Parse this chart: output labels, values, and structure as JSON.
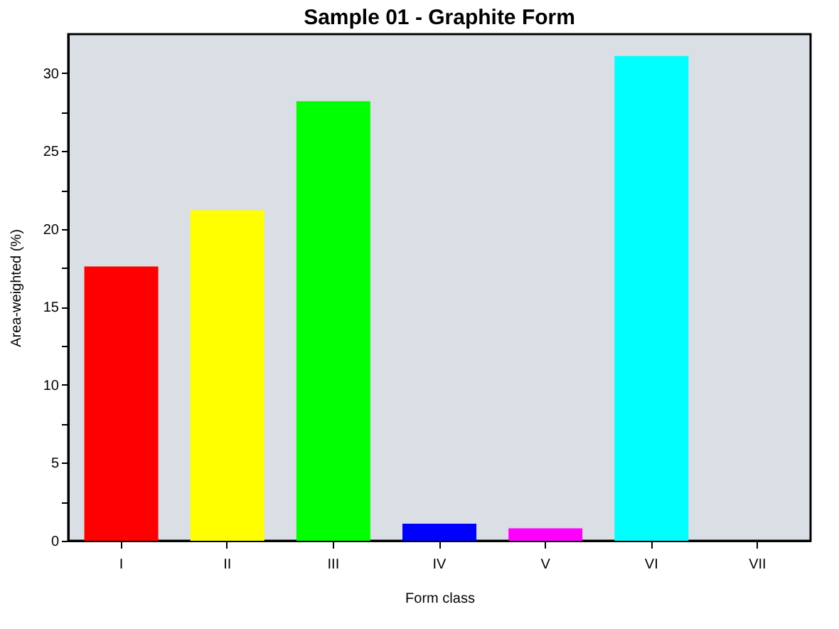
{
  "chart_data": {
    "type": "bar",
    "title": "Sample 01 - Graphite Form",
    "xlabel": "Form class",
    "ylabel": "Area-weighted (%)",
    "categories": [
      "I",
      "II",
      "III",
      "IV",
      "V",
      "VI",
      "VII"
    ],
    "values": [
      17.6,
      21.2,
      28.2,
      1.1,
      0.8,
      31.1,
      0
    ],
    "colors": [
      "#ff0000",
      "#ffff00",
      "#00ff00",
      "#0000ff",
      "#ff00ff",
      "#00ffff",
      "#808080"
    ],
    "ylim": [
      0,
      32.5
    ],
    "yticks": [
      0,
      {
        "value": 2.5,
        "label": null
      },
      5,
      {
        "value": 7.5,
        "label": null
      },
      10,
      {
        "value": 12.5,
        "label": null
      },
      15,
      {
        "value": 17.5,
        "label": null
      },
      20,
      {
        "value": 22.5,
        "label": null
      },
      25,
      {
        "value": 27.5,
        "label": null
      },
      30
    ],
    "grid": false
  }
}
